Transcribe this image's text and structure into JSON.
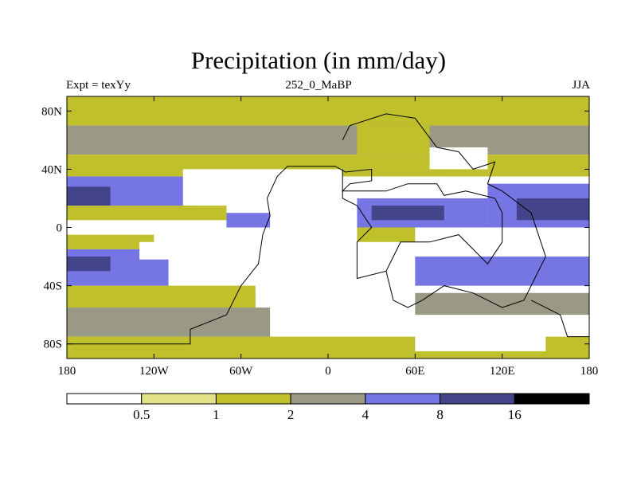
{
  "chart": {
    "title": "Precipitation (in mm/day)",
    "left_label": "Expt = texYy",
    "center_label": "252_0_MaBP",
    "right_label": "JJA"
  },
  "colors": {
    "level0": "#ffffff",
    "level1": "#e2e386",
    "level2": "#c0bf2c",
    "level3": "#9a9985",
    "level4": "#7575e3",
    "level5": "#44448a",
    "level6": "#000000",
    "coast": "#000000"
  },
  "chart_data": {
    "type": "heatmap",
    "title": "Precipitation (in mm/day)",
    "xlabel": "",
    "ylabel": "",
    "xlim": [
      -180,
      180
    ],
    "ylim": [
      -90,
      90
    ],
    "x_ticks": [
      {
        "value": -180,
        "label": "180"
      },
      {
        "value": -120,
        "label": "120W"
      },
      {
        "value": -60,
        "label": "60W"
      },
      {
        "value": 0,
        "label": "0"
      },
      {
        "value": 60,
        "label": "60E"
      },
      {
        "value": 120,
        "label": "120E"
      },
      {
        "value": 180,
        "label": "180"
      }
    ],
    "y_ticks": [
      {
        "value": 80,
        "label": "80N"
      },
      {
        "value": 40,
        "label": "40N"
      },
      {
        "value": 0,
        "label": "0"
      },
      {
        "value": -40,
        "label": "40S"
      },
      {
        "value": -80,
        "label": "80S"
      }
    ],
    "colorbar": {
      "levels": [
        "0.5",
        "1",
        "2",
        "4",
        "8",
        "16"
      ],
      "colors": [
        "#ffffff",
        "#e2e386",
        "#c0bf2c",
        "#9a9985",
        "#7575e3",
        "#44448a",
        "#000000"
      ]
    },
    "field": [
      {
        "lat_min": 70,
        "lat_max": 90,
        "lon_min": -180,
        "lon_max": 180,
        "level": 2
      },
      {
        "lat_min": 50,
        "lat_max": 70,
        "lon_min": -180,
        "lon_max": 180,
        "level": 3
      },
      {
        "lat_min": 35,
        "lat_max": 50,
        "lon_min": -180,
        "lon_max": 180,
        "level": 2
      },
      {
        "lat_min": 10,
        "lat_max": 35,
        "lon_min": -180,
        "lon_max": -90,
        "level": 4
      },
      {
        "lat_min": 12,
        "lat_max": 28,
        "lon_min": -180,
        "lon_max": -150,
        "level": 5
      },
      {
        "lat_min": 5,
        "lat_max": 15,
        "lon_min": -180,
        "lon_max": -70,
        "level": 2
      },
      {
        "lat_min": -5,
        "lat_max": 5,
        "lon_min": -180,
        "lon_max": -110,
        "level": 0
      },
      {
        "lat_min": -15,
        "lat_max": -5,
        "lon_min": -180,
        "lon_max": -120,
        "level": 2
      },
      {
        "lat_min": -40,
        "lat_max": -15,
        "lon_min": -180,
        "lon_max": -110,
        "level": 4
      },
      {
        "lat_min": -30,
        "lat_max": -20,
        "lon_min": -180,
        "lon_max": -150,
        "level": 5
      },
      {
        "lat_min": -22,
        "lat_max": -10,
        "lon_min": -130,
        "lon_max": -80,
        "level": 0
      },
      {
        "lat_min": -55,
        "lat_max": -40,
        "lon_min": -180,
        "lon_max": -50,
        "level": 2
      },
      {
        "lat_min": -75,
        "lat_max": -55,
        "lon_min": -180,
        "lon_max": -40,
        "level": 3
      },
      {
        "lat_min": -90,
        "lat_max": -75,
        "lon_min": -180,
        "lon_max": 180,
        "level": 2
      },
      {
        "lat_min": 15,
        "lat_max": 40,
        "lon_min": -100,
        "lon_max": 10,
        "level": 0
      },
      {
        "lat_min": 20,
        "lat_max": 35,
        "lon_min": 10,
        "lon_max": 80,
        "level": 0
      },
      {
        "lat_min": 0,
        "lat_max": 10,
        "lon_min": -70,
        "lon_max": -40,
        "level": 4
      },
      {
        "lat_min": -45,
        "lat_max": 0,
        "lon_min": -50,
        "lon_max": 20,
        "level": 0
      },
      {
        "lat_min": -10,
        "lat_max": 0,
        "lon_min": 20,
        "lon_max": 60,
        "level": 2
      },
      {
        "lat_min": 0,
        "lat_max": 20,
        "lon_min": 20,
        "lon_max": 110,
        "level": 4
      },
      {
        "lat_min": 5,
        "lat_max": 15,
        "lon_min": 30,
        "lon_max": 80,
        "level": 5
      },
      {
        "lat_min": -20,
        "lat_max": -10,
        "lon_min": 70,
        "lon_max": 110,
        "level": 0
      },
      {
        "lat_min": 0,
        "lat_max": 30,
        "lon_min": 110,
        "lon_max": 180,
        "level": 4
      },
      {
        "lat_min": 5,
        "lat_max": 20,
        "lon_min": 130,
        "lon_max": 180,
        "level": 5
      },
      {
        "lat_min": -40,
        "lat_max": -20,
        "lon_min": 60,
        "lon_max": 180,
        "level": 4
      },
      {
        "lat_min": -60,
        "lat_max": -45,
        "lon_min": 60,
        "lon_max": 180,
        "level": 3
      },
      {
        "lat_min": -85,
        "lat_max": -65,
        "lon_min": 60,
        "lon_max": 150,
        "level": 0
      },
      {
        "lat_min": 50,
        "lat_max": 70,
        "lon_min": 20,
        "lon_max": 70,
        "level": 2
      },
      {
        "lat_min": 40,
        "lat_max": 55,
        "lon_min": 70,
        "lon_max": 110,
        "level": 0
      }
    ],
    "coastlines": [
      [
        [
          -180,
          -80
        ],
        [
          -95,
          -80
        ],
        [
          -95,
          -70
        ],
        [
          -70,
          -60
        ],
        [
          -60,
          -40
        ],
        [
          -48,
          -25
        ],
        [
          -45,
          -5
        ],
        [
          -40,
          8
        ],
        [
          -42,
          20
        ],
        [
          -35,
          35
        ],
        [
          -28,
          42
        ],
        [
          5,
          42
        ],
        [
          12,
          38
        ],
        [
          30,
          40
        ],
        [
          30,
          32
        ],
        [
          15,
          30
        ],
        [
          10,
          25
        ],
        [
          40,
          25
        ],
        [
          55,
          30
        ],
        [
          75,
          30
        ],
        [
          80,
          22
        ],
        [
          95,
          25
        ],
        [
          115,
          20
        ],
        [
          120,
          10
        ],
        [
          120,
          -10
        ],
        [
          110,
          -25
        ],
        [
          100,
          -15
        ],
        [
          90,
          -5
        ],
        [
          70,
          -10
        ],
        [
          50,
          -10
        ],
        [
          45,
          -20
        ],
        [
          40,
          -30
        ],
        [
          20,
          -35
        ],
        [
          20,
          -10
        ],
        [
          30,
          0
        ],
        [
          20,
          15
        ],
        [
          10,
          20
        ],
        [
          10,
          40
        ]
      ],
      [
        [
          10,
          60
        ],
        [
          15,
          70
        ],
        [
          40,
          78
        ],
        [
          60,
          75
        ],
        [
          75,
          55
        ],
        [
          90,
          52
        ],
        [
          100,
          40
        ],
        [
          115,
          45
        ],
        [
          110,
          30
        ],
        [
          120,
          25
        ],
        [
          140,
          10
        ],
        [
          150,
          -20
        ],
        [
          135,
          -50
        ],
        [
          120,
          -55
        ],
        [
          100,
          -45
        ],
        [
          80,
          -40
        ],
        [
          65,
          -50
        ],
        [
          55,
          -55
        ],
        [
          45,
          -50
        ],
        [
          40,
          -30
        ]
      ],
      [
        [
          140,
          -50
        ],
        [
          160,
          -60
        ],
        [
          165,
          -75
        ],
        [
          180,
          -75
        ]
      ]
    ]
  }
}
